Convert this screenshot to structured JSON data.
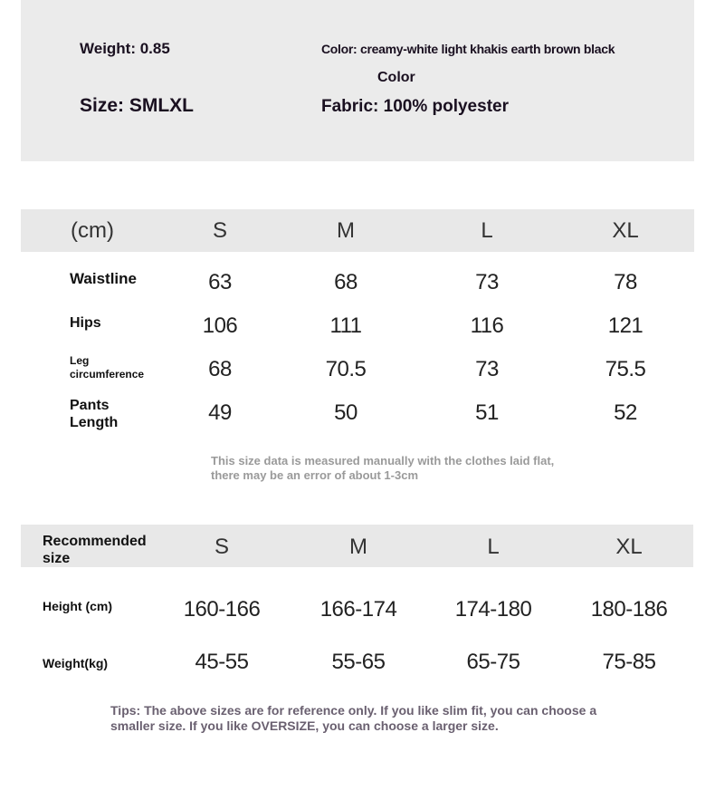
{
  "info": {
    "weight": "Weight: 0.85",
    "color": "Color: creamy-white light khakis earth brown black",
    "color_label": "Color",
    "size": "Size: SMLXL",
    "fabric": "Fabric: 100% polyester"
  },
  "size_table": {
    "unit": "(cm)",
    "sizes": [
      "S",
      "M",
      "L",
      "XL"
    ],
    "rows": [
      {
        "label": "Waistline",
        "values": [
          "63",
          "68",
          "73",
          "78"
        ]
      },
      {
        "label": "Hips",
        "values": [
          "106",
          "111",
          "116",
          "121"
        ]
      },
      {
        "label_line1": "Leg",
        "label_line2": "circumference",
        "values": [
          "68",
          "70.5",
          "73",
          "75.5"
        ]
      },
      {
        "label_line1": "Pants",
        "label_line2": "Length",
        "values": [
          "49",
          "50",
          "51",
          "52"
        ]
      }
    ],
    "note_line1": "This size data is measured manually with the clothes laid flat,",
    "note_line2": "there may be an error of about 1-3cm"
  },
  "recommend_table": {
    "label_line1": "Recommended",
    "label_line2": "size",
    "sizes": [
      "S",
      "M",
      "L",
      "XL"
    ],
    "rows": [
      {
        "label": "Height (cm)",
        "values": [
          "160-166",
          "166-174",
          "174-180",
          "180-186"
        ]
      },
      {
        "label": "Weight(kg)",
        "values": [
          "45-55",
          "55-65",
          "65-75",
          "75-85"
        ]
      }
    ]
  },
  "tips_line1": "Tips: The above sizes are for reference only. If you like slim fit, you can choose a",
  "tips_line2": "smaller size. If you like OVERSIZE, you can choose a larger size."
}
